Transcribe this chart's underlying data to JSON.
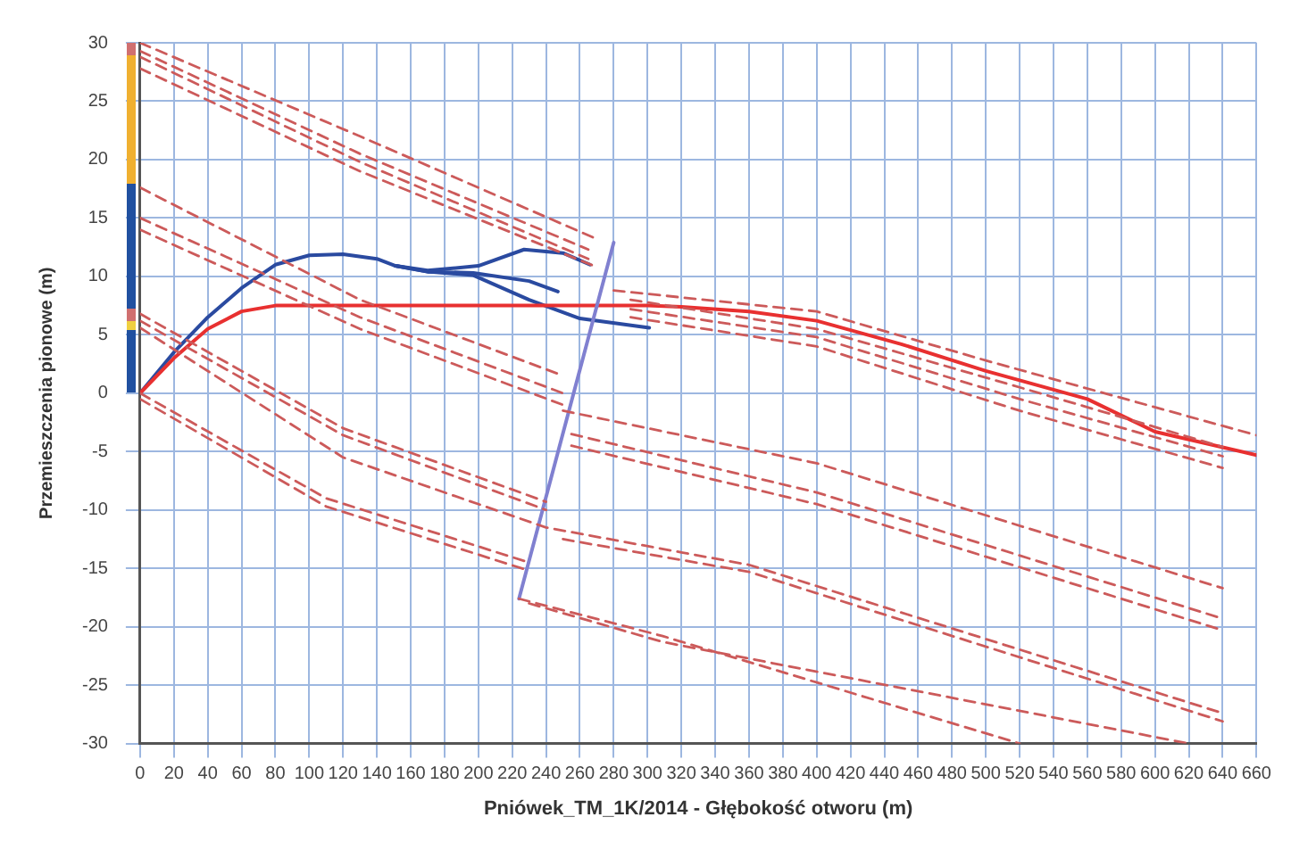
{
  "chart_data": {
    "type": "line",
    "xlabel": "Pniówek_TM_1K/2014 - Głębokość otworu (m)",
    "ylabel": "Przemieszczenia pionowe (m)",
    "xlim": [
      0,
      660
    ],
    "ylim": [
      -30,
      30
    ],
    "xticks": [
      0,
      20,
      40,
      60,
      80,
      100,
      120,
      140,
      160,
      180,
      200,
      220,
      240,
      260,
      280,
      300,
      320,
      340,
      360,
      380,
      400,
      420,
      440,
      460,
      480,
      500,
      520,
      540,
      560,
      580,
      600,
      620,
      640,
      660
    ],
    "yticks": [
      -30,
      -25,
      -20,
      -15,
      -10,
      -5,
      0,
      5,
      10,
      15,
      20,
      25,
      30
    ],
    "grid": true,
    "legend": false,
    "marker": "none",
    "series": [
      {
        "color": "#cc5a5a",
        "line_style": "dashed",
        "x": [
          0,
          130,
          270
        ],
        "values": [
          30,
          22,
          13.2
        ]
      },
      {
        "color": "#cc5a5a",
        "line_style": "dashed",
        "x": [
          0,
          130,
          265
        ],
        "values": [
          29.3,
          20.5,
          12.3
        ]
      },
      {
        "color": "#cc5a5a",
        "line_style": "dashed",
        "x": [
          0,
          130,
          265
        ],
        "values": [
          28.8,
          19.8,
          11.5
        ]
      },
      {
        "color": "#cc5a5a",
        "line_style": "dashed",
        "x": [
          0,
          130,
          270
        ],
        "values": [
          27.8,
          19,
          10.8
        ]
      },
      {
        "color": "#cc5a5a",
        "line_style": "dashed",
        "x": [
          280,
          400,
          500,
          660
        ],
        "values": [
          8.8,
          7,
          2.8,
          -3.6
        ]
      },
      {
        "color": "#cc5a5a",
        "line_style": "dashed",
        "x": [
          290,
          400,
          520,
          640
        ],
        "values": [
          8,
          5.5,
          0.5,
          -4.6
        ]
      },
      {
        "color": "#cc5a5a",
        "line_style": "dashed",
        "x": [
          290,
          400,
          520,
          640
        ],
        "values": [
          7.2,
          4.8,
          -0.5,
          -5.4
        ]
      },
      {
        "color": "#cc5a5a",
        "line_style": "dashed",
        "x": [
          290,
          400,
          520,
          640
        ],
        "values": [
          6.5,
          4,
          -1.5,
          -6.4
        ]
      },
      {
        "color": "#cc5a5a",
        "line_style": "dashed",
        "x": [
          0,
          130,
          250
        ],
        "values": [
          17.6,
          8,
          1.5
        ]
      },
      {
        "color": "#cc5a5a",
        "line_style": "dashed",
        "x": [
          0,
          130,
          250
        ],
        "values": [
          15,
          6.5,
          0
        ]
      },
      {
        "color": "#cc5a5a",
        "line_style": "dashed",
        "x": [
          0,
          130,
          250
        ],
        "values": [
          14,
          5.5,
          -1
        ]
      },
      {
        "color": "#cc5a5a",
        "line_style": "dashed",
        "x": [
          250,
          400,
          640
        ],
        "values": [
          -1.5,
          -6,
          -16.7
        ]
      },
      {
        "color": "#cc5a5a",
        "line_style": "dashed",
        "x": [
          255,
          400,
          640
        ],
        "values": [
          -3.5,
          -8.5,
          -19.3
        ]
      },
      {
        "color": "#cc5a5a",
        "line_style": "dashed",
        "x": [
          255,
          400,
          640
        ],
        "values": [
          -4.5,
          -9.5,
          -20.3
        ]
      },
      {
        "color": "#cc5a5a",
        "line_style": "dashed",
        "x": [
          0,
          120,
          240
        ],
        "values": [
          6.8,
          -3,
          -9.3
        ]
      },
      {
        "color": "#cc5a5a",
        "line_style": "dashed",
        "x": [
          0,
          120,
          240
        ],
        "values": [
          6.2,
          -3.6,
          -10
        ]
      },
      {
        "color": "#cc5a5a",
        "line_style": "dashed",
        "x": [
          0,
          120,
          240,
          360,
          640
        ],
        "values": [
          5.6,
          -5.5,
          -11.5,
          -14.7,
          -27.4
        ]
      },
      {
        "color": "#cc5a5a",
        "line_style": "dashed",
        "x": [
          250,
          360,
          640
        ],
        "values": [
          -12.5,
          -15.3,
          -28.1
        ]
      },
      {
        "color": "#cc5a5a",
        "line_style": "dashed",
        "x": [
          0,
          110,
          230
        ],
        "values": [
          0,
          -9,
          -14.5
        ]
      },
      {
        "color": "#cc5a5a",
        "line_style": "dashed",
        "x": [
          0,
          110,
          230
        ],
        "values": [
          -0.5,
          -9.7,
          -15.2
        ]
      },
      {
        "color": "#cc5a5a",
        "line_style": "dashed",
        "x": [
          224,
          309,
          520
        ],
        "values": [
          -17.6,
          -20.8,
          -30
        ]
      },
      {
        "color": "#cc5a5a",
        "line_style": "dashed",
        "x": [
          230,
          309,
          620
        ],
        "values": [
          -18,
          -21.3,
          -30
        ]
      },
      {
        "color": "#8080d0",
        "line_style": "solid",
        "x": [
          224,
          280
        ],
        "values": [
          -17.6,
          12.9
        ]
      },
      {
        "color": "#e83030",
        "line_style": "solid",
        "x": [
          0,
          20,
          40,
          60,
          80,
          300,
          320,
          360,
          400,
          450,
          500,
          560,
          600,
          660
        ],
        "values": [
          0,
          3,
          5.5,
          7,
          7.5,
          7.5,
          7.4,
          7,
          6.2,
          4.2,
          1.9,
          -0.5,
          -3.3,
          -5.3
        ]
      },
      {
        "color": "#2a4aa0",
        "line_style": "solid",
        "x": [
          0,
          20,
          40,
          60,
          80,
          100,
          120,
          140,
          151,
          170,
          200,
          227,
          250,
          266
        ],
        "values": [
          0,
          3.5,
          6.5,
          9,
          11,
          11.8,
          11.9,
          11.5,
          10.9,
          10.5,
          10.9,
          12.3,
          12,
          11
        ]
      },
      {
        "color": "#2a4aa0",
        "line_style": "solid",
        "x": [
          151,
          170,
          197,
          230,
          247
        ],
        "values": [
          10.9,
          10.4,
          10.3,
          9.6,
          8.7
        ]
      },
      {
        "color": "#2a4aa0",
        "line_style": "solid",
        "x": [
          151,
          170,
          197,
          230,
          260,
          301
        ],
        "values": [
          10.9,
          10.4,
          10.1,
          8,
          6.4,
          5.6
        ]
      }
    ]
  }
}
